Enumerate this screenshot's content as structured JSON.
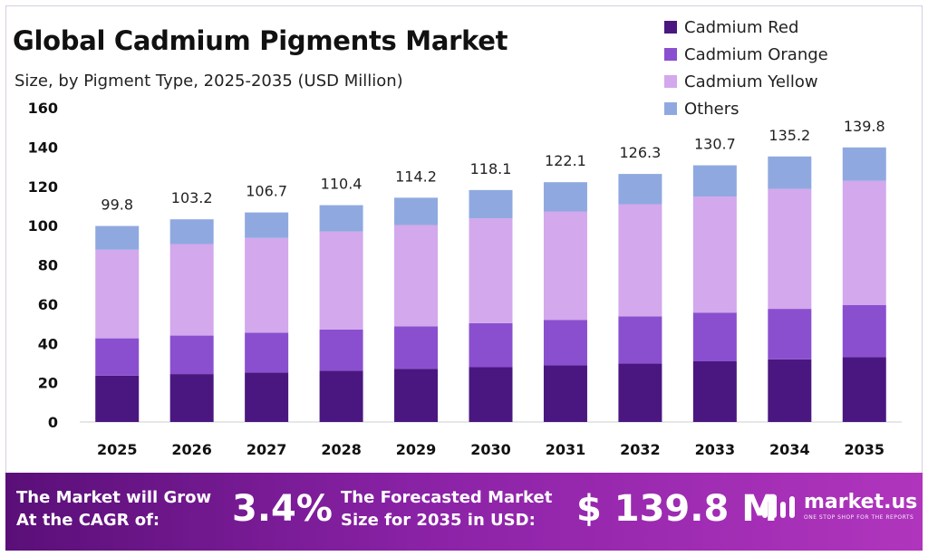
{
  "title": "Global Cadmium Pigments Market",
  "subtitle": "Size, by Pigment Type, 2025-2035 (USD Million)",
  "colors": {
    "cadmium_red": "#4a1780",
    "cadmium_orange": "#8a4fcf",
    "cadmium_yellow": "#d3a8ec",
    "others": "#8fa9e0"
  },
  "chart_data": {
    "type": "bar",
    "stacked": true,
    "title": "Global Cadmium Pigments Market",
    "subtitle": "Size, by Pigment Type, 2025-2035 (USD Million)",
    "xlabel": "",
    "ylabel": "",
    "ylim": [
      0,
      160
    ],
    "yticks": [
      0,
      20,
      40,
      60,
      80,
      100,
      120,
      140,
      160
    ],
    "categories": [
      "2025",
      "2026",
      "2027",
      "2028",
      "2029",
      "2030",
      "2031",
      "2032",
      "2033",
      "2034",
      "2035"
    ],
    "totals": [
      "99.8",
      "103.2",
      "106.7",
      "110.4",
      "114.2",
      "118.1",
      "122.1",
      "126.3",
      "130.7",
      "135.2",
      "139.8"
    ],
    "series": [
      {
        "name": "Cadmium Red",
        "color": "#4a1780",
        "values": [
          23.6,
          24.4,
          25.2,
          26.1,
          27.0,
          27.9,
          28.8,
          29.8,
          30.9,
          31.9,
          33.0
        ]
      },
      {
        "name": "Cadmium Orange",
        "color": "#8a4fcf",
        "values": [
          19.0,
          19.6,
          20.3,
          21.0,
          21.7,
          22.4,
          23.2,
          24.0,
          24.8,
          25.7,
          26.6
        ]
      },
      {
        "name": "Cadmium Yellow",
        "color": "#d3a8ec",
        "values": [
          45.1,
          46.6,
          48.2,
          49.9,
          51.6,
          53.4,
          55.2,
          57.1,
          59.1,
          61.1,
          63.2
        ]
      },
      {
        "name": "Others",
        "color": "#8fa9e0",
        "values": [
          12.1,
          12.6,
          13.0,
          13.4,
          13.9,
          14.4,
          14.9,
          15.4,
          15.9,
          16.5,
          17.0
        ]
      }
    ],
    "legend_position": "top-right"
  },
  "banner": {
    "cagr_label_line1": "The Market will Grow",
    "cagr_label_line2": "At the CAGR of:",
    "cagr_value": "3.4%",
    "forecast_label_line1": "The Forecasted Market",
    "forecast_label_line2": "Size for 2035 in USD:",
    "forecast_value": "$ 139.8 M",
    "logo_text": "market.us",
    "logo_tagline": "ONE STOP SHOP FOR THE REPORTS"
  }
}
